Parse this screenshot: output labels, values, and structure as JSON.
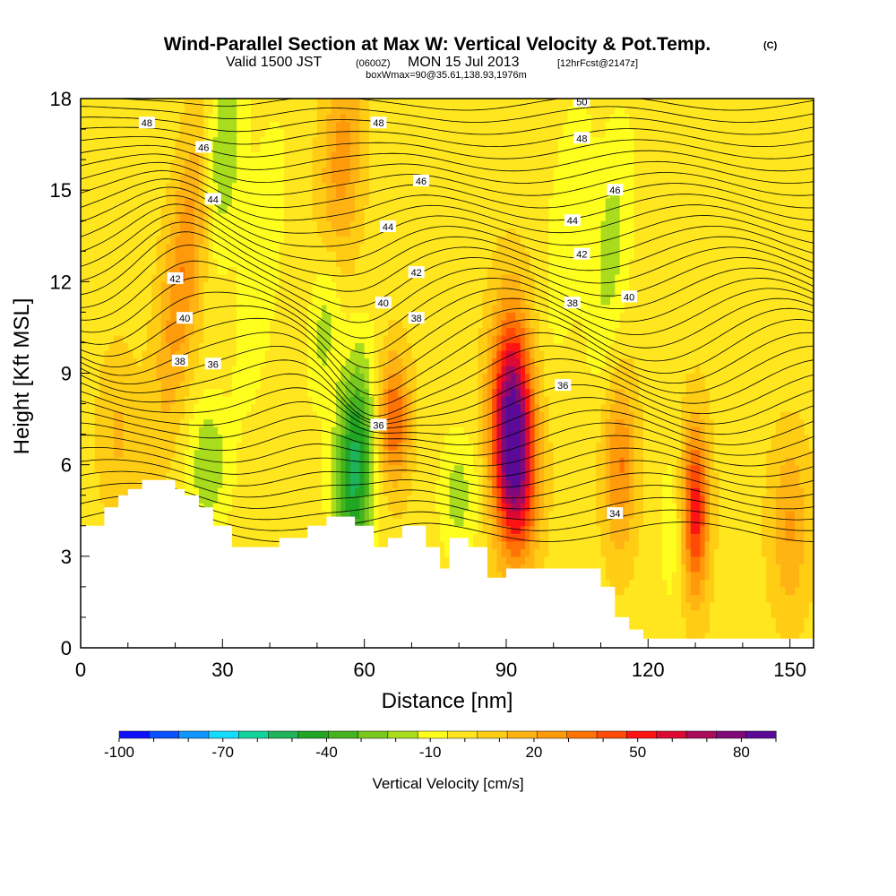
{
  "title": {
    "main": "Wind-Parallel Section at Max W: Vertical Velocity & Pot.Temp.",
    "copyright": "(C)",
    "valid_prefix": "Valid 1500 JST",
    "valid_zulu": "(0600Z)",
    "valid_date": "MON 15 Jul 2013",
    "forecast": "[12hrFcst@2147z]",
    "box_info": "boxWmax=90@35.61,138.93,1976m"
  },
  "chart_data": {
    "type": "heatmap",
    "xlabel": "Distance [nm]",
    "ylabel": "Height [Kft MSL]",
    "xlim": [
      0,
      155
    ],
    "ylim": [
      0,
      18
    ],
    "x_ticks": [
      "0",
      "30",
      "60",
      "90",
      "120",
      "150"
    ],
    "y_ticks": [
      "0",
      "3",
      "6",
      "9",
      "12",
      "15",
      "18"
    ],
    "colorbar": {
      "title": "Vertical Velocity [cm/s]",
      "labels": [
        "-100",
        "-70",
        "-40",
        "-10",
        "20",
        "50",
        "80"
      ],
      "colors": [
        "#1010ff",
        "#0a50ff",
        "#0f96ff",
        "#14dcff",
        "#14d29b",
        "#1eb45a",
        "#22a522",
        "#46b41e",
        "#78c81e",
        "#aadc1e",
        "#ffff1e",
        "#ffe61e",
        "#ffcd14",
        "#ffb414",
        "#ff9b0a",
        "#ff7305",
        "#ff4b05",
        "#ff1414",
        "#dc0a32",
        "#aa0a5a",
        "#820a78",
        "#5a0a96"
      ]
    },
    "terrain": [
      [
        0,
        4.0
      ],
      [
        5,
        4.0
      ],
      [
        5,
        4.6
      ],
      [
        8,
        4.6
      ],
      [
        8,
        5.0
      ],
      [
        10,
        5.0
      ],
      [
        10,
        5.2
      ],
      [
        13,
        5.2
      ],
      [
        13,
        5.5
      ],
      [
        20,
        5.5
      ],
      [
        20,
        5.2
      ],
      [
        22,
        5.2
      ],
      [
        22,
        5.0
      ],
      [
        25,
        5.0
      ],
      [
        25,
        4.6
      ],
      [
        28,
        4.6
      ],
      [
        28,
        4.0
      ],
      [
        32,
        4.0
      ],
      [
        32,
        3.3
      ],
      [
        42,
        3.3
      ],
      [
        42,
        3.6
      ],
      [
        48,
        3.6
      ],
      [
        48,
        4.0
      ],
      [
        52,
        4.0
      ],
      [
        52,
        4.3
      ],
      [
        58,
        4.3
      ],
      [
        58,
        4.0
      ],
      [
        62,
        4.0
      ],
      [
        62,
        3.3
      ],
      [
        65,
        3.3
      ],
      [
        65,
        3.6
      ],
      [
        68,
        3.6
      ],
      [
        68,
        4.0
      ],
      [
        73,
        4.0
      ],
      [
        73,
        3.3
      ],
      [
        76,
        3.3
      ],
      [
        76,
        2.6
      ],
      [
        78,
        2.6
      ],
      [
        78,
        3.6
      ],
      [
        82,
        3.6
      ],
      [
        82,
        3.3
      ],
      [
        86,
        3.3
      ],
      [
        86,
        2.3
      ],
      [
        90,
        2.3
      ],
      [
        90,
        2.6
      ],
      [
        96,
        2.6
      ],
      [
        96,
        2.6
      ],
      [
        100,
        2.6
      ],
      [
        100,
        2.6
      ],
      [
        106,
        2.6
      ],
      [
        106,
        2.6
      ],
      [
        110,
        2.6
      ],
      [
        110,
        2.0
      ],
      [
        113,
        2.0
      ],
      [
        113,
        1.0
      ],
      [
        116,
        1.0
      ],
      [
        116,
        0.6
      ],
      [
        119,
        0.6
      ],
      [
        119,
        0.3
      ],
      [
        155,
        0.3
      ]
    ],
    "w_features": [
      {
        "x": 22,
        "y": 12.5,
        "sx": 3,
        "sy": 3.5,
        "w": 35,
        "tilt": 0.8
      },
      {
        "x": 30,
        "y": 16.5,
        "sx": 3,
        "sy": 2.5,
        "w": -30,
        "tilt": 0.4
      },
      {
        "x": 27,
        "y": 6.0,
        "sx": 3,
        "sy": 1.5,
        "w": -25,
        "tilt": 0
      },
      {
        "x": 38,
        "y": 12.5,
        "sx": 3,
        "sy": 3.5,
        "w": -15,
        "tilt": 0.7
      },
      {
        "x": 55,
        "y": 15.5,
        "sx": 3,
        "sy": 3,
        "w": 30,
        "tilt": 0.3
      },
      {
        "x": 58,
        "y": 6.0,
        "sx": 3,
        "sy": 2.5,
        "w": -60,
        "tilt": 0.2
      },
      {
        "x": 52,
        "y": 11.0,
        "sx": 2.5,
        "sy": 2,
        "w": -25,
        "tilt": 0.5
      },
      {
        "x": 66,
        "y": 7.5,
        "sx": 2.5,
        "sy": 1.5,
        "w": 45,
        "tilt": 0
      },
      {
        "x": 91,
        "y": 7.5,
        "sx": 3,
        "sy": 2.5,
        "w": 90,
        "tilt": 0
      },
      {
        "x": 93,
        "y": 5.5,
        "sx": 3,
        "sy": 2,
        "w": 40,
        "tilt": 0
      },
      {
        "x": 103,
        "y": 14.0,
        "sx": 3,
        "sy": 3,
        "w": -15,
        "tilt": 0.6
      },
      {
        "x": 112,
        "y": 13.0,
        "sx": 3,
        "sy": 3,
        "w": -20,
        "tilt": 0.5
      },
      {
        "x": 114,
        "y": 6.0,
        "sx": 2.5,
        "sy": 2,
        "w": 35,
        "tilt": 0
      },
      {
        "x": 125,
        "y": 4.0,
        "sx": 2,
        "sy": 2,
        "w": -12,
        "tilt": 0
      },
      {
        "x": 130,
        "y": 4.5,
        "sx": 2,
        "sy": 2,
        "w": 60,
        "tilt": 0
      },
      {
        "x": 80,
        "y": 5.0,
        "sx": 3,
        "sy": 1.5,
        "w": -20,
        "tilt": 0
      },
      {
        "x": 8,
        "y": 7.0,
        "sx": 3,
        "sy": 2,
        "w": 15,
        "tilt": 0
      },
      {
        "x": 150,
        "y": 4.0,
        "sx": 3,
        "sy": 2,
        "w": 25,
        "tilt": 0
      }
    ],
    "theta_contour_labels": [
      {
        "text": "48",
        "x": 14,
        "y": 17.2
      },
      {
        "text": "46",
        "x": 26,
        "y": 16.4
      },
      {
        "text": "44",
        "x": 28,
        "y": 14.7
      },
      {
        "text": "42",
        "x": 20,
        "y": 12.1
      },
      {
        "text": "40",
        "x": 22,
        "y": 10.8
      },
      {
        "text": "38",
        "x": 21,
        "y": 9.4
      },
      {
        "text": "36",
        "x": 28,
        "y": 9.3
      },
      {
        "text": "48",
        "x": 63,
        "y": 17.2
      },
      {
        "text": "46",
        "x": 72,
        "y": 15.3
      },
      {
        "text": "44",
        "x": 65,
        "y": 13.8
      },
      {
        "text": "42",
        "x": 71,
        "y": 12.3
      },
      {
        "text": "40",
        "x": 64,
        "y": 11.3
      },
      {
        "text": "38",
        "x": 71,
        "y": 10.8
      },
      {
        "text": "36",
        "x": 63,
        "y": 7.3
      },
      {
        "text": "50",
        "x": 106,
        "y": 17.9
      },
      {
        "text": "48",
        "x": 106,
        "y": 16.7
      },
      {
        "text": "46",
        "x": 113,
        "y": 15.0
      },
      {
        "text": "44",
        "x": 104,
        "y": 14.0
      },
      {
        "text": "42",
        "x": 106,
        "y": 12.9
      },
      {
        "text": "40",
        "x": 116,
        "y": 11.5
      },
      {
        "text": "38",
        "x": 104,
        "y": 11.3
      },
      {
        "text": "36",
        "x": 102,
        "y": 8.6
      },
      {
        "text": "34",
        "x": 113,
        "y": 4.4
      }
    ]
  }
}
